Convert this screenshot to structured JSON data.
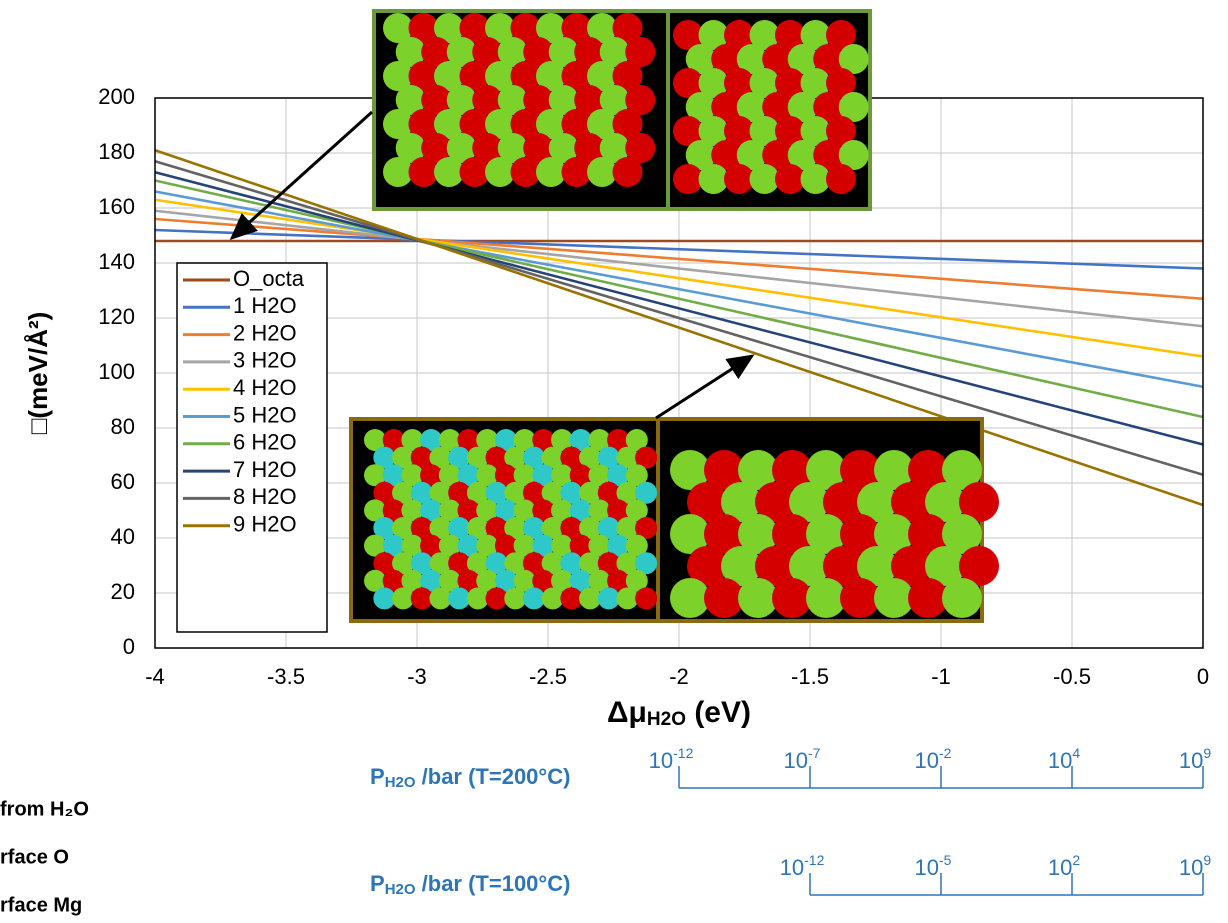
{
  "chart_data": {
    "type": "line",
    "y_label": "□(meV/Å²)",
    "x_label": {
      "main": "Δμ",
      "sub": "H2O",
      "unit": " (eV)"
    },
    "x": [
      -4,
      0
    ],
    "series": [
      {
        "name": "O_octa",
        "color": "#9e4a1c",
        "values": [
          148,
          148
        ]
      },
      {
        "name": "1 H2O",
        "color": "#4472c4",
        "values": [
          152,
          138
        ]
      },
      {
        "name": "2 H2O",
        "color": "#ed7d31",
        "values": [
          156,
          127
        ]
      },
      {
        "name": "3 H2O",
        "color": "#a5a5a5",
        "values": [
          159,
          117
        ]
      },
      {
        "name": "4 H2O",
        "color": "#ffc000",
        "values": [
          163,
          106
        ]
      },
      {
        "name": "5 H2O",
        "color": "#5b9bd5",
        "values": [
          166,
          95
        ]
      },
      {
        "name": "6 H2O",
        "color": "#70ad47",
        "values": [
          170,
          84
        ]
      },
      {
        "name": "7 H2O",
        "color": "#264478",
        "values": [
          173,
          74
        ]
      },
      {
        "name": "8 H2O",
        "color": "#636363",
        "values": [
          177,
          63
        ]
      },
      {
        "name": "9 H2O",
        "color": "#997300",
        "values": [
          181,
          52
        ]
      }
    ],
    "xlim": [
      -4,
      0
    ],
    "xticks": [
      -4,
      -3.5,
      -3,
      -2.5,
      -2,
      -1.5,
      -1,
      -0.5,
      0
    ],
    "ylim": [
      0,
      200
    ],
    "yticks": [
      0,
      20,
      40,
      60,
      80,
      100,
      120,
      140,
      160,
      180,
      200
    ],
    "grid": true,
    "legend_position": "left",
    "pressure_scales": [
      {
        "label": {
          "main": "P",
          "sub": "H2O",
          "rest": " /bar (T=200°C)"
        },
        "ticks": [
          {
            "value": -2,
            "label": "10",
            "exponent": "-12"
          },
          {
            "value": -1.5,
            "label": "10",
            "exponent": "-7"
          },
          {
            "value": -1,
            "label": "10",
            "exponent": "-2"
          },
          {
            "value": -0.5,
            "label": "10",
            "exponent": "4"
          },
          {
            "value": 0,
            "label": "10",
            "exponent": "9"
          }
        ]
      },
      {
        "label": {
          "main": "P",
          "sub": "H2O",
          "rest": " /bar (T=100°C)"
        },
        "ticks": [
          {
            "value": -1.5,
            "label": "10",
            "exponent": "-12"
          },
          {
            "value": -1,
            "label": "10",
            "exponent": "-5"
          },
          {
            "value": -0.5,
            "label": "10",
            "exponent": "2"
          },
          {
            "value": 0,
            "label": "10",
            "exponent": "9"
          }
        ]
      }
    ],
    "side_notes": [
      "from H₂O",
      "rface O",
      "rface Mg"
    ]
  }
}
